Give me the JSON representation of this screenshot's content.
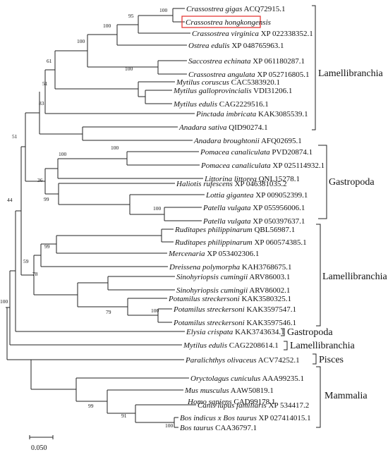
{
  "tree": {
    "taxa": [
      {
        "species": "Crassostrea gigas",
        "acc": "ACQ72915.1"
      },
      {
        "species": "Crassostrea hongkongensis",
        "acc": ""
      },
      {
        "species": "Crassostrea virginica",
        "acc": "XP 022338352.1"
      },
      {
        "species": "Ostrea edulis",
        "acc": "XP 048765963.1"
      },
      {
        "species": "Saccostrea echinata",
        "acc": "XP 061180287.1"
      },
      {
        "species": "Crassostrea angulata",
        "acc": "XP 052716805.1"
      },
      {
        "species": "Mytilus coruscus",
        "acc": "CAC5383920.1"
      },
      {
        "species": "Mytilus galloprovincialis",
        "acc": "VDI31206.1"
      },
      {
        "species": "Mytilus edulis",
        "acc": "CAG2229516.1"
      },
      {
        "species": "Pinctada imbricata",
        "acc": "KAK3085539.1"
      },
      {
        "species": "Anadara sativa",
        "acc": "QID90274.1"
      },
      {
        "species": "Anadara broughtonii",
        "acc": "AFQ02695.1"
      },
      {
        "species": "Pomacea canaliculata",
        "acc": "PVD20874.1"
      },
      {
        "species": "Pomacea canaliculata",
        "acc": "XP 025114932.1"
      },
      {
        "species": "Littorina littorea",
        "acc": "QNL15278.1"
      },
      {
        "species": "Haliotis rufescens",
        "acc": "XP 046381035.2"
      },
      {
        "species": "Lottia gigantea",
        "acc": "XP 009052399.1"
      },
      {
        "species": "Patella vulgata",
        "acc": "XP 055956006.1"
      },
      {
        "species": "Patella vulgata",
        "acc": "XP 050397637.1"
      },
      {
        "species": "Ruditapes philippinarum",
        "acc": "QBL56987.1"
      },
      {
        "species": "Ruditapes philippinarum",
        "acc": "XP 060574385.1"
      },
      {
        "species": "Mercenaria",
        "acc": "XP 053402306.1"
      },
      {
        "species": "Dreissena polymorpha",
        "acc": "KAH3768675.1"
      },
      {
        "species": "Sinohyriopsis cumingii",
        "acc": "ARV86003.1"
      },
      {
        "species": "Sinohyriopsis cumingii",
        "acc": "ARV86002.1"
      },
      {
        "species": "Potamilus streckersoni",
        "acc": "KAK3580325.1"
      },
      {
        "species": "Potamilus streckersoni",
        "acc": "KAK3597547.1"
      },
      {
        "species": "Potamilus streckersoni",
        "acc": "KAK3597546.1"
      },
      {
        "species": "Elysia crispata",
        "acc": "KAK3743634.1"
      },
      {
        "species": "Mytilus edulis",
        "acc": "CAG2208614.1"
      },
      {
        "species": "Paralichthys olivaceus",
        "acc": "ACV74252.1"
      },
      {
        "species": "Oryctolagus cuniculus",
        "acc": "AAA99235.1"
      },
      {
        "species": "Mus musculus",
        "acc": "AAW50819.1"
      },
      {
        "species": "Homo sapiens",
        "acc": "CAD99178.1"
      },
      {
        "species": "Canis lupus familiaris",
        "acc": "XP 534417.2"
      },
      {
        "species": "Bos indicus x Bos taurus",
        "acc": "XP 027414015.1"
      },
      {
        "species": "Bos taurus",
        "acc": "CAA36797.1"
      }
    ],
    "highlighted_taxon": "Crassostrea hongkongensis",
    "highlight_color": "#e53935",
    "bootstrap": [
      "100",
      "95",
      "100",
      "100",
      "61",
      "100",
      "51",
      "83",
      "100",
      "100",
      "36",
      "99",
      "51",
      "100",
      "99",
      "78",
      "79",
      "100",
      "59",
      "44",
      "100",
      "99",
      "91",
      "100"
    ],
    "groups": [
      "Lamellibranchia",
      "Gastropoda",
      "Lamellibranchia",
      "Gastropoda",
      "Lamellibranchia",
      "Pisces",
      "Mammalia"
    ],
    "scale_label": "0.050"
  }
}
